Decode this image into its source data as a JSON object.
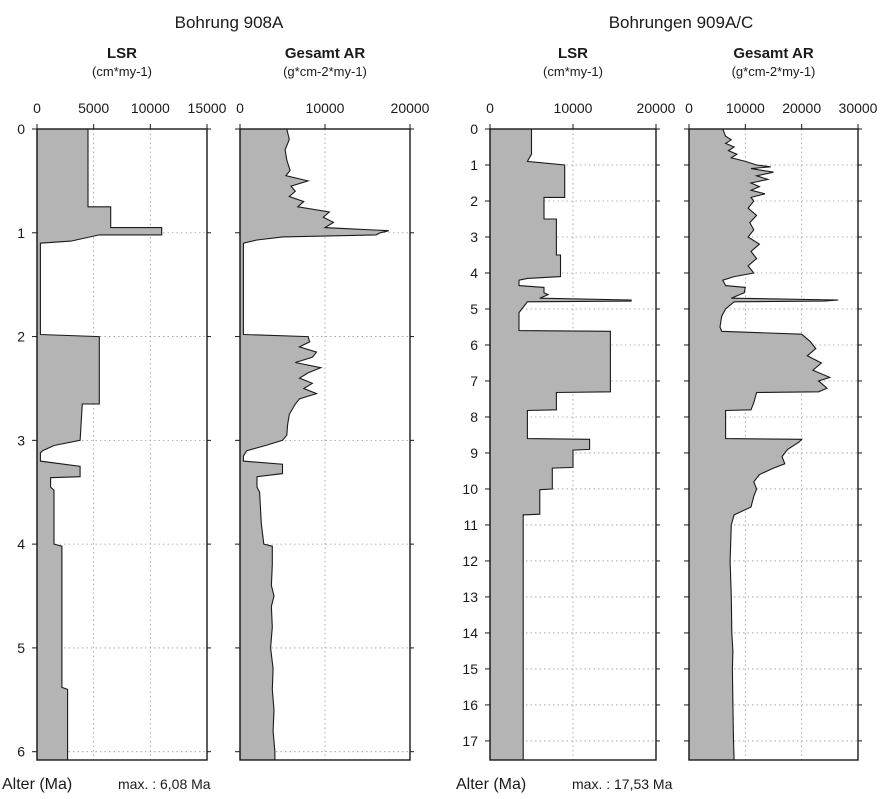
{
  "labels": {
    "x_caption": "Alter (Ma)"
  },
  "chart_data": [
    {
      "type": "area",
      "group_title": "Bohrung 908A",
      "title": "LSR",
      "unit": "(cm*my-1)",
      "footer_max": "max. : 6,08 Ma",
      "value_axis": {
        "range": [
          0,
          15000
        ],
        "ticks": [
          0,
          5000,
          10000,
          15000
        ]
      },
      "depth_axis": {
        "range": [
          0,
          6.08
        ],
        "ticks": [
          0,
          1,
          2,
          3,
          4,
          5,
          6
        ],
        "label": "Alter (Ma)"
      },
      "grid": true,
      "fill_color": "#b4b4b4",
      "profile": [
        [
          0,
          4500
        ],
        [
          0.75,
          4500
        ],
        [
          0.75,
          6500
        ],
        [
          0.95,
          6500
        ],
        [
          0.95,
          11000
        ],
        [
          1.02,
          11000
        ],
        [
          1.02,
          5500
        ],
        [
          1.08,
          3000
        ],
        [
          1.1,
          300
        ],
        [
          1.98,
          300
        ],
        [
          2.0,
          5500
        ],
        [
          2.65,
          5500
        ],
        [
          2.65,
          4000
        ],
        [
          3.0,
          3800
        ],
        [
          3.05,
          1500
        ],
        [
          3.1,
          500
        ],
        [
          3.12,
          300
        ],
        [
          3.2,
          300
        ],
        [
          3.25,
          3800
        ],
        [
          3.35,
          3800
        ],
        [
          3.36,
          1200
        ],
        [
          3.45,
          1200
        ],
        [
          3.48,
          1500
        ],
        [
          4.0,
          1500
        ],
        [
          4.02,
          2200
        ],
        [
          5.38,
          2200
        ],
        [
          5.4,
          2700
        ],
        [
          6.08,
          2700
        ]
      ]
    },
    {
      "type": "area",
      "group_title": "Bohrung 908A",
      "title": "Gesamt AR",
      "unit": "(g*cm-2*my-1)",
      "value_axis": {
        "range": [
          0,
          20000
        ],
        "ticks": [
          0,
          10000,
          20000
        ]
      },
      "depth_axis": {
        "range": [
          0,
          6.08
        ],
        "ticks": [
          0,
          1,
          2,
          3,
          4,
          5,
          6
        ]
      },
      "grid": true,
      "fill_color": "#b4b4b4",
      "profile": [
        [
          0,
          5500
        ],
        [
          0.1,
          5800
        ],
        [
          0.2,
          5300
        ],
        [
          0.3,
          5500
        ],
        [
          0.4,
          5900
        ],
        [
          0.45,
          5400
        ],
        [
          0.5,
          8000
        ],
        [
          0.55,
          6000
        ],
        [
          0.6,
          6500
        ],
        [
          0.65,
          5800
        ],
        [
          0.7,
          7500
        ],
        [
          0.75,
          6800
        ],
        [
          0.8,
          10500
        ],
        [
          0.85,
          9800
        ],
        [
          0.9,
          11000
        ],
        [
          0.95,
          10000
        ],
        [
          0.98,
          17500
        ],
        [
          1.0,
          16500
        ],
        [
          1.02,
          16000
        ],
        [
          1.04,
          5000
        ],
        [
          1.07,
          2000
        ],
        [
          1.1,
          400
        ],
        [
          1.98,
          400
        ],
        [
          2.0,
          8000
        ],
        [
          2.05,
          8200
        ],
        [
          2.1,
          7000
        ],
        [
          2.15,
          9000
        ],
        [
          2.2,
          8500
        ],
        [
          2.25,
          6500
        ],
        [
          2.3,
          9500
        ],
        [
          2.35,
          8000
        ],
        [
          2.4,
          7000
        ],
        [
          2.45,
          8500
        ],
        [
          2.5,
          7500
        ],
        [
          2.55,
          9000
        ],
        [
          2.6,
          7000
        ],
        [
          2.65,
          6500
        ],
        [
          2.75,
          5800
        ],
        [
          2.85,
          5600
        ],
        [
          2.95,
          5500
        ],
        [
          3.0,
          5000
        ],
        [
          3.05,
          3000
        ],
        [
          3.1,
          800
        ],
        [
          3.15,
          400
        ],
        [
          3.2,
          400
        ],
        [
          3.23,
          5000
        ],
        [
          3.32,
          5000
        ],
        [
          3.35,
          2000
        ],
        [
          3.45,
          2000
        ],
        [
          3.5,
          2300
        ],
        [
          3.8,
          2500
        ],
        [
          4.0,
          2800
        ],
        [
          4.02,
          3800
        ],
        [
          4.2,
          3800
        ],
        [
          4.4,
          3700
        ],
        [
          4.5,
          4000
        ],
        [
          4.6,
          3700
        ],
        [
          4.8,
          3800
        ],
        [
          5.0,
          3600
        ],
        [
          5.2,
          3900
        ],
        [
          5.4,
          3800
        ],
        [
          5.6,
          4000
        ],
        [
          5.8,
          3900
        ],
        [
          6.0,
          4100
        ],
        [
          6.08,
          4100
        ]
      ]
    },
    {
      "type": "area",
      "group_title": "Bohrungen 909A/C",
      "title": "LSR",
      "unit": "(cm*my-1)",
      "footer_max": "max. : 17,53 Ma",
      "value_axis": {
        "range": [
          0,
          20000
        ],
        "ticks": [
          0,
          10000,
          20000
        ]
      },
      "depth_axis": {
        "range": [
          0,
          17.53
        ],
        "ticks": [
          0,
          1,
          2,
          3,
          4,
          5,
          6,
          7,
          8,
          9,
          10,
          11,
          12,
          13,
          14,
          15,
          16,
          17
        ],
        "label": "Alter (Ma)"
      },
      "grid": true,
      "fill_color": "#b4b4b4",
      "profile": [
        [
          0,
          5000
        ],
        [
          0.7,
          5000
        ],
        [
          0.9,
          4500
        ],
        [
          1.0,
          9000
        ],
        [
          1.9,
          9000
        ],
        [
          1.9,
          6500
        ],
        [
          2.5,
          6500
        ],
        [
          2.5,
          8000
        ],
        [
          3.5,
          8000
        ],
        [
          3.5,
          8500
        ],
        [
          4.1,
          8500
        ],
        [
          4.15,
          4500
        ],
        [
          4.2,
          3500
        ],
        [
          4.35,
          3500
        ],
        [
          4.4,
          6500
        ],
        [
          4.55,
          6500
        ],
        [
          4.6,
          7000
        ],
        [
          4.7,
          6000
        ],
        [
          4.75,
          17000
        ],
        [
          4.78,
          17000
        ],
        [
          4.8,
          4500
        ],
        [
          5.1,
          3500
        ],
        [
          5.6,
          3500
        ],
        [
          5.62,
          14500
        ],
        [
          7.3,
          14500
        ],
        [
          7.32,
          8000
        ],
        [
          7.8,
          8000
        ],
        [
          7.82,
          4500
        ],
        [
          8.6,
          4500
        ],
        [
          8.62,
          12000
        ],
        [
          8.9,
          12000
        ],
        [
          8.92,
          10000
        ],
        [
          9.4,
          10000
        ],
        [
          9.42,
          7500
        ],
        [
          10.0,
          7500
        ],
        [
          10.02,
          6000
        ],
        [
          10.7,
          6000
        ],
        [
          10.72,
          4000
        ],
        [
          17.53,
          4000
        ]
      ]
    },
    {
      "type": "area",
      "group_title": "Bohrungen 909A/C",
      "title": "Gesamt AR",
      "unit": "(g*cm-2*my-1)",
      "value_axis": {
        "range": [
          0,
          30000
        ],
        "ticks": [
          0,
          10000,
          20000,
          30000
        ]
      },
      "depth_axis": {
        "range": [
          0,
          17.53
        ],
        "ticks": [
          0,
          1,
          2,
          3,
          4,
          5,
          6,
          7,
          8,
          9,
          10,
          11,
          12,
          13,
          14,
          15,
          16,
          17
        ]
      },
      "grid": true,
      "fill_color": "#b4b4b4",
      "profile": [
        [
          0,
          6000
        ],
        [
          0.2,
          6500
        ],
        [
          0.3,
          7500
        ],
        [
          0.4,
          6500
        ],
        [
          0.5,
          8000
        ],
        [
          0.6,
          7000
        ],
        [
          0.7,
          8500
        ],
        [
          0.8,
          7500
        ],
        [
          0.9,
          10000
        ],
        [
          1.0,
          12000
        ],
        [
          1.05,
          14500
        ],
        [
          1.1,
          11000
        ],
        [
          1.2,
          15000
        ],
        [
          1.3,
          12000
        ],
        [
          1.4,
          14000
        ],
        [
          1.5,
          11000
        ],
        [
          1.6,
          12500
        ],
        [
          1.7,
          11000
        ],
        [
          1.8,
          13500
        ],
        [
          1.9,
          11000
        ],
        [
          2.0,
          11500
        ],
        [
          2.2,
          10500
        ],
        [
          2.4,
          12000
        ],
        [
          2.6,
          10800
        ],
        [
          2.8,
          11500
        ],
        [
          3.0,
          10500
        ],
        [
          3.2,
          12500
        ],
        [
          3.4,
          11000
        ],
        [
          3.6,
          12000
        ],
        [
          3.8,
          10500
        ],
        [
          4.0,
          11500
        ],
        [
          4.1,
          8000
        ],
        [
          4.2,
          6000
        ],
        [
          4.35,
          6500
        ],
        [
          4.4,
          10000
        ],
        [
          4.55,
          9800
        ],
        [
          4.6,
          9000
        ],
        [
          4.7,
          7500
        ],
        [
          4.75,
          26500
        ],
        [
          4.78,
          24000
        ],
        [
          4.8,
          8000
        ],
        [
          5.0,
          6500
        ],
        [
          5.2,
          5800
        ],
        [
          5.5,
          5500
        ],
        [
          5.62,
          5800
        ],
        [
          5.7,
          20000
        ],
        [
          5.9,
          21500
        ],
        [
          6.1,
          22500
        ],
        [
          6.3,
          21000
        ],
        [
          6.5,
          23500
        ],
        [
          6.7,
          22000
        ],
        [
          6.9,
          25000
        ],
        [
          7.0,
          23000
        ],
        [
          7.2,
          24500
        ],
        [
          7.3,
          23000
        ],
        [
          7.32,
          12000
        ],
        [
          7.6,
          11500
        ],
        [
          7.8,
          11000
        ],
        [
          7.82,
          6500
        ],
        [
          8.6,
          6500
        ],
        [
          8.62,
          20000
        ],
        [
          8.7,
          19500
        ],
        [
          8.9,
          17500
        ],
        [
          9.1,
          16500
        ],
        [
          9.3,
          17000
        ],
        [
          9.42,
          15000
        ],
        [
          9.6,
          12500
        ],
        [
          9.8,
          11500
        ],
        [
          10.0,
          12000
        ],
        [
          10.2,
          11500
        ],
        [
          10.5,
          11000
        ],
        [
          10.72,
          8000
        ],
        [
          11.0,
          7500
        ],
        [
          12.0,
          7300
        ],
        [
          13.0,
          7500
        ],
        [
          14.0,
          7600
        ],
        [
          14.5,
          7800
        ],
        [
          15.0,
          7700
        ],
        [
          16.0,
          7800
        ],
        [
          17.0,
          7900
        ],
        [
          17.53,
          8000
        ]
      ]
    }
  ]
}
